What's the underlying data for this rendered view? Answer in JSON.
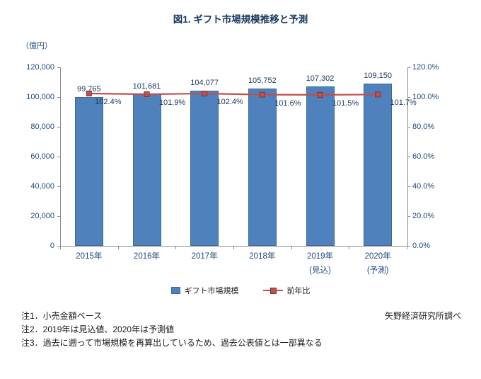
{
  "page": {
    "source": "矢野経済研究所調べ",
    "notes": [
      "注1．小売金額ベース",
      "注2．2019年は見込値、2020年は予測値",
      "注3．過去に遡って市場規模を再算出しているため、過去公表値とは一部異なる"
    ]
  },
  "chart_data": {
    "type": "bar+line combo",
    "title": "図1. ギフト市場規模推移と予測",
    "grid": false,
    "legend_position": "bottom",
    "categories": [
      {
        "label": "2015年",
        "sublabel": ""
      },
      {
        "label": "2016年",
        "sublabel": ""
      },
      {
        "label": "2017年",
        "sublabel": ""
      },
      {
        "label": "2018年",
        "sublabel": ""
      },
      {
        "label": "2019年",
        "sublabel": "(見込)"
      },
      {
        "label": "2020年",
        "sublabel": "(予測)"
      }
    ],
    "series": [
      {
        "name": "ギフト市場規模",
        "type": "bar",
        "axis": "left",
        "values": [
          99765,
          101681,
          104077,
          105752,
          107302,
          109150
        ],
        "labels": [
          "99,765",
          "101,681",
          "104,077",
          "105,752",
          "107,302",
          "109,150"
        ],
        "color": "#4F81BD",
        "border_color": "#3E6896"
      },
      {
        "name": "前年比",
        "type": "line",
        "axis": "right",
        "values": [
          102.4,
          101.9,
          102.4,
          101.6,
          101.5,
          101.7
        ],
        "labels": [
          "102.4%",
          "101.9%",
          "102.4%",
          "101.6%",
          "101.5%",
          "101.7%"
        ],
        "color": "#C0504D",
        "marker_border": "#7F3330"
      }
    ],
    "left_axis": {
      "unit": "（億円）",
      "min": 0,
      "max": 120000,
      "step": 20000,
      "ticks": [
        "0",
        "20,000",
        "40,000",
        "60,000",
        "80,000",
        "100,000",
        "120,000"
      ]
    },
    "right_axis": {
      "min": 0,
      "max": 120,
      "step": 20,
      "ticks": [
        "0.0%",
        "20.0%",
        "40.0%",
        "60.0%",
        "80.0%",
        "100.0%",
        "120.0%"
      ]
    }
  }
}
